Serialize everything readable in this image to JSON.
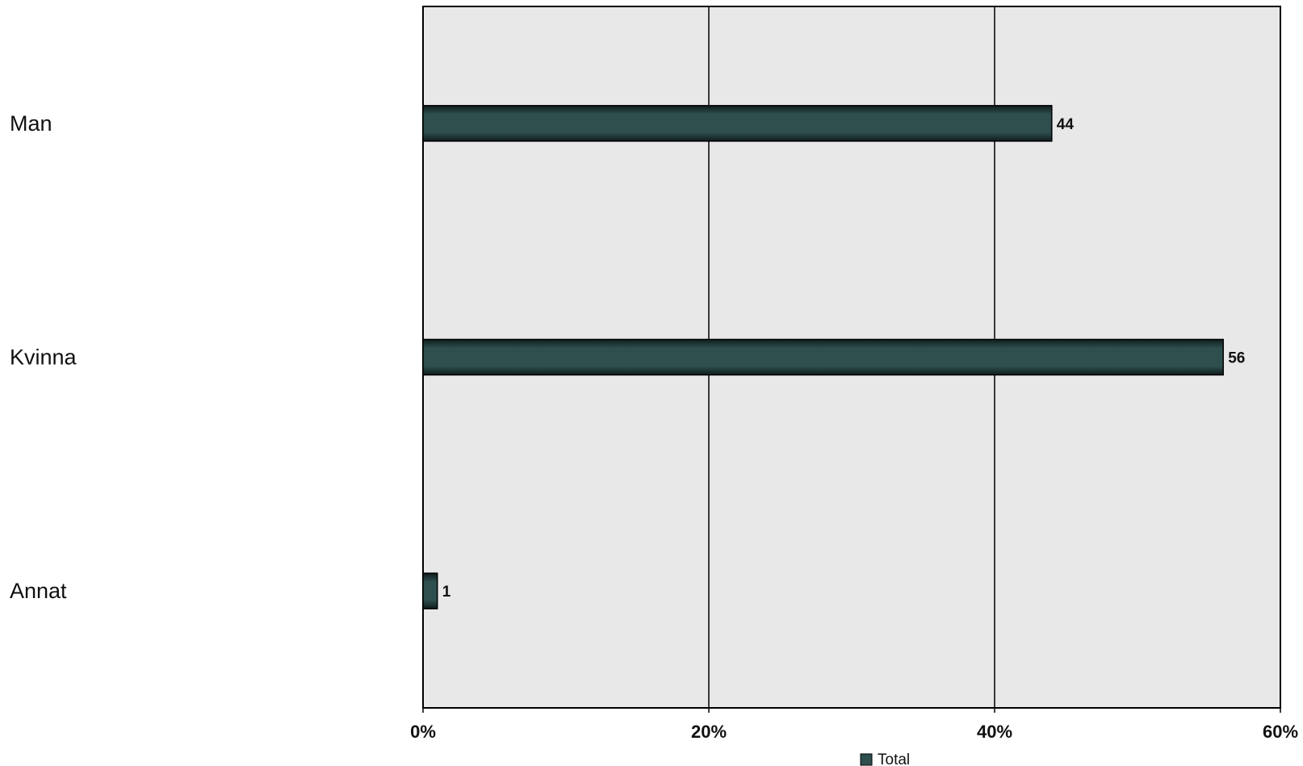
{
  "chart_data": {
    "type": "bar",
    "orientation": "horizontal",
    "categories": [
      "Man",
      "Kvinna",
      "Annat"
    ],
    "series": [
      {
        "name": "Total",
        "values": [
          44,
          56,
          1
        ]
      }
    ],
    "data_labels": [
      "44",
      "56",
      "1"
    ],
    "x_ticks": [
      0,
      20,
      40,
      60
    ],
    "x_tick_labels": [
      "0%",
      "20%",
      "40%",
      "60%"
    ],
    "xlim": [
      0,
      60
    ],
    "grid": true,
    "legend_position": "bottom-center",
    "colors": {
      "bar": "#2f4f4f",
      "plot_background": "#e8e8e8",
      "gridline": "#000000"
    }
  }
}
